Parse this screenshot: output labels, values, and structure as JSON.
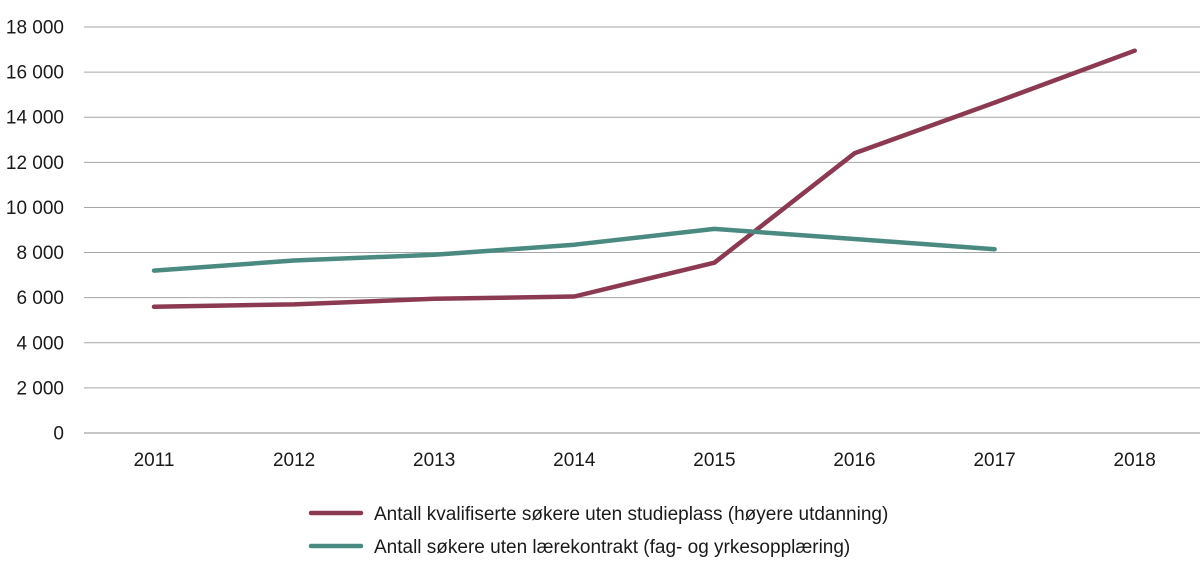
{
  "chart_data": {
    "type": "line",
    "title": "",
    "xlabel": "",
    "ylabel": "",
    "categories": [
      "2011",
      "2012",
      "2013",
      "2014",
      "2015",
      "2016",
      "2017",
      "2018"
    ],
    "ylim": [
      0,
      18000
    ],
    "yticks": [
      0,
      2000,
      4000,
      6000,
      8000,
      10000,
      12000,
      14000,
      16000,
      18000
    ],
    "ytick_labels": [
      "0",
      "2 000",
      "4 000",
      "6 000",
      "8 000",
      "10 000",
      "12 000",
      "14 000",
      "16 000",
      "18 000"
    ],
    "grid": true,
    "legend_position": "bottom",
    "series": [
      {
        "name": "Antall kvalifiserte søkere uten studieplass (høyere utdanning)",
        "color": "#8b3a52",
        "values": [
          5600,
          5700,
          5950,
          6050,
          7550,
          12400,
          14650,
          16950
        ]
      },
      {
        "name": "Antall søkere uten lærekontrakt (fag- og yrkesopplæring)",
        "color": "#4b8a80",
        "values": [
          7200,
          7650,
          7900,
          8350,
          9050,
          8600,
          8150,
          null
        ]
      }
    ]
  }
}
